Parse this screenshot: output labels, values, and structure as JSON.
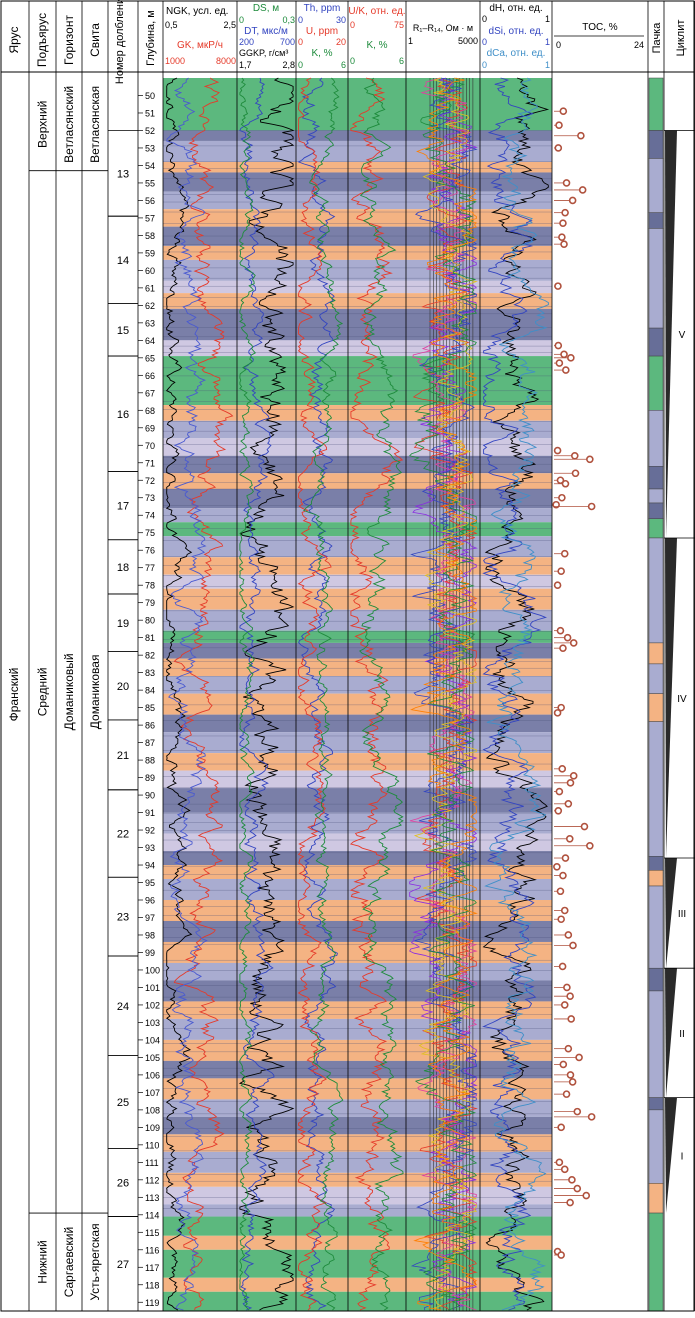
{
  "headers": {
    "yarus": "Ярус",
    "podyarus": "Подъярус",
    "gorizont": "Горизонт",
    "svita": "Свита",
    "run_no": "Номер долбления",
    "depth": "Глубина, м",
    "pachka": "Пачка",
    "cycle": "Циклит"
  },
  "track1": {
    "ngk": {
      "label": "NGK, усл. ед.",
      "min": "0,5",
      "max": "2,5"
    },
    "gk": {
      "label": "GK, мкР/ч",
      "min": "1000",
      "max": "8000"
    }
  },
  "track2": {
    "ds": {
      "label": "DS, м",
      "min": "0",
      "max": "0,3"
    },
    "dt": {
      "label": "DT, мкс/м",
      "min": "200",
      "max": "700"
    },
    "ggkp": {
      "label": "GGKP, г/см³",
      "min": "1,7",
      "max": "2,8"
    }
  },
  "track3": {
    "th": {
      "label": "Th, ppm",
      "min": "0",
      "max": "30"
    },
    "u": {
      "label": "U, ppm",
      "min": "0",
      "max": "20"
    },
    "k": {
      "label": "K, %",
      "min": "0",
      "max": "6"
    }
  },
  "track4": {
    "uk": {
      "label": "U/K, отн. ед.",
      "min": "0",
      "max": "75"
    },
    "k": {
      "label": "K, %",
      "min": "0",
      "max": "6"
    }
  },
  "track5": {
    "label": "R₁–R₁₄, Ом · м",
    "min": "1",
    "max": "5000"
  },
  "track6": {
    "dh": {
      "label": "dH, отн. ед.",
      "min": "0",
      "max": "1"
    },
    "dsi": {
      "label": "dSi, отн. ед.",
      "min": "0",
      "max": "1"
    },
    "dca": {
      "label": "dCa, отн. ед.",
      "min": "0",
      "max": "1"
    }
  },
  "track7": {
    "label": "TOC, %",
    "min": "0",
    "max": "24"
  },
  "strat": {
    "yarus": "Франский",
    "podyarus": [
      {
        "name": "Верхний",
        "from": 49,
        "to": 54.3
      },
      {
        "name": "Средний",
        "from": 54.3,
        "to": 113.9
      },
      {
        "name": "Нижний",
        "from": 113.9,
        "to": 119.5
      }
    ],
    "gorizont": [
      {
        "name": "Ветласянский",
        "from": 49,
        "to": 54.3
      },
      {
        "name": "Доманиковый",
        "from": 54.3,
        "to": 113.9
      },
      {
        "name": "Саргаевский",
        "from": 113.9,
        "to": 119.5
      }
    ],
    "svita": [
      {
        "name": "Ветласянская",
        "from": 49,
        "to": 54.3
      },
      {
        "name": "Доманиковая",
        "from": 54.3,
        "to": 113.9
      },
      {
        "name": "Усть-ярегская",
        "from": 113.9,
        "to": 119.5
      }
    ]
  },
  "runs": [
    {
      "no": "13",
      "from": 52.0,
      "to": 56.9
    },
    {
      "no": "14",
      "from": 56.9,
      "to": 61.9
    },
    {
      "no": "15",
      "from": 61.9,
      "to": 64.9
    },
    {
      "no": "16",
      "from": 64.9,
      "to": 71.5
    },
    {
      "no": "17",
      "from": 71.5,
      "to": 75.4
    },
    {
      "no": "18",
      "from": 75.4,
      "to": 78.5
    },
    {
      "no": "19",
      "from": 78.5,
      "to": 81.8
    },
    {
      "no": "20",
      "from": 81.8,
      "to": 85.7
    },
    {
      "no": "21",
      "from": 85.7,
      "to": 89.7
    },
    {
      "no": "22",
      "from": 89.7,
      "to": 94.7
    },
    {
      "no": "23",
      "from": 94.7,
      "to": 99.2
    },
    {
      "no": "24",
      "from": 99.2,
      "to": 104.9
    },
    {
      "no": "25",
      "from": 104.9,
      "to": 110.2
    },
    {
      "no": "26",
      "from": 110.2,
      "to": 114.1
    },
    {
      "no": "27",
      "from": 114.1,
      "to": 119.5
    }
  ],
  "depth_ticks": [
    "50",
    "51",
    "52",
    "53",
    "54",
    "55",
    "56",
    "57",
    "58",
    "59",
    "60",
    "61",
    "62",
    "63",
    "64",
    "65",
    "66",
    "67",
    "68",
    "69",
    "70",
    "71",
    "72",
    "73",
    "74",
    "75",
    "76",
    "77",
    "78",
    "79",
    "80",
    "81",
    "82",
    "83",
    "84",
    "85",
    "86",
    "87",
    "88",
    "89",
    "90",
    "91",
    "92",
    "93",
    "94",
    "95",
    "96",
    "97",
    "98",
    "99",
    "100",
    "101",
    "102",
    "103",
    "104",
    "105",
    "106",
    "107",
    "108",
    "109",
    "110",
    "111",
    "112",
    "113",
    "114",
    "115",
    "116",
    "117",
    "118",
    "119"
  ],
  "cycles": [
    {
      "name": "V",
      "from": 52.0,
      "to": 75.3
    },
    {
      "name": "IV",
      "from": 75.3,
      "to": 93.6
    },
    {
      "name": "III",
      "from": 93.6,
      "to": 99.9
    },
    {
      "name": "II",
      "from": 99.9,
      "to": 107.3
    },
    {
      "name": "I",
      "from": 107.3,
      "to": 113.9
    }
  ],
  "facies_colors": {
    "green": "#5cb87e",
    "blue_dark": "#7a7fa8",
    "blue_light": "#a9acd0",
    "lavender": "#cfc8e2",
    "orange": "#f4b383",
    "pachka_blue": "#a9acd0",
    "pachka_dark": "#676e98",
    "toc_marker": "#b0523e"
  }
}
